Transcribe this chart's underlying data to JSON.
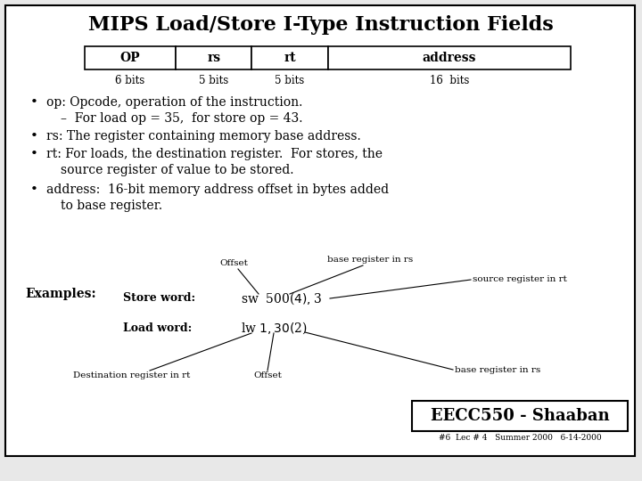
{
  "title": "MIPS Load/Store I-Type Instruction Fields",
  "bg_color": "#e8e8e8",
  "border_color": "#000000",
  "table_fields": [
    "OP",
    "rs",
    "rt",
    "address"
  ],
  "table_bits": [
    "6 bits",
    "5 bits",
    "5 bits",
    "16  bits"
  ],
  "bullet1": "op: Opcode, operation of the instruction.",
  "bullet1b": "–  For load op = 35,  for store op = 43.",
  "bullet2": "rs: The register containing memory base address.",
  "bullet3a": "rt: For loads, the destination register.  For stores, the",
  "bullet3b": "source register of value to be stored.",
  "bullet4a": "address:  16-bit memory address offset in bytes added",
  "bullet4b": "to base register.",
  "examples_label": "Examples:",
  "store_label": "Store word:",
  "store_code": "sw  500($4), $3",
  "load_label": "Load word:",
  "load_code": "lw $1, 30($2)",
  "ann_offset1": "Offset",
  "ann_base_reg1": "base register in rs",
  "ann_src_reg": "source register in rt",
  "ann_dest_reg": "Destination register in rt",
  "ann_offset2": "Offset",
  "ann_base_reg2": "base register in rs",
  "footer": "EECC550 - Shaaban",
  "footer_small": "#6  Lec # 4   Summer 2000   6-14-2000",
  "font_family": "DejaVu Serif"
}
